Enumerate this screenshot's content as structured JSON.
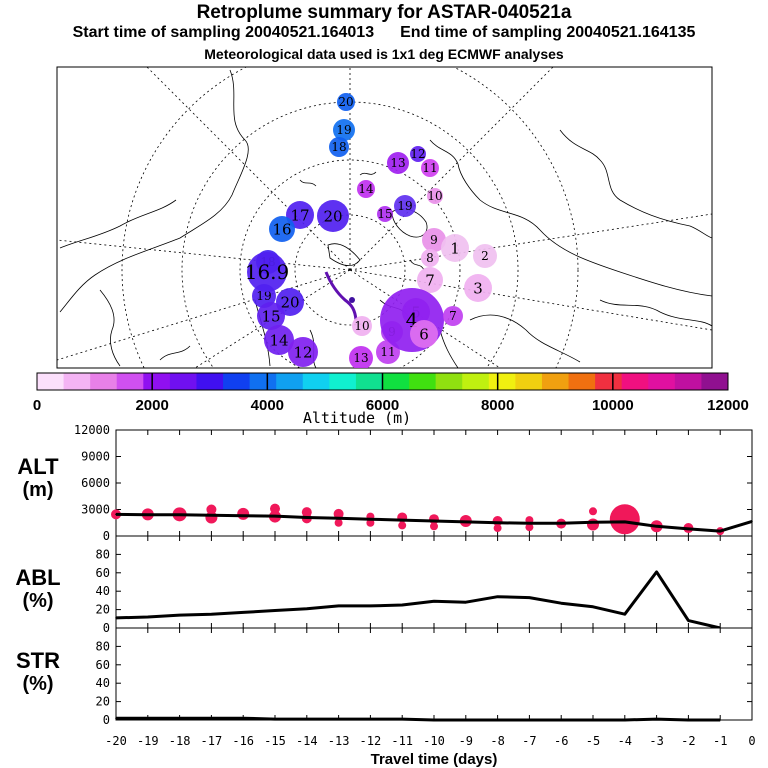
{
  "header": {
    "title": "Retroplume summary for ASTAR-040521a",
    "start_label": "Start time of sampling 20040521.164013",
    "end_label": "End time of sampling 20040521.164135",
    "met_label": "Meteorological data used is 1x1 deg ECMWF analyses"
  },
  "colorbar": {
    "title": "Altitude (m)",
    "tick_labels": [
      "0",
      "2000",
      "4000",
      "6000",
      "8000",
      "10000",
      "12000"
    ],
    "colors": [
      "#fce0fc",
      "#f4b4f4",
      "#e880e8",
      "#d050f0",
      "#9010f0",
      "#7010f0",
      "#4010f0",
      "#1040f0",
      "#1070f0",
      "#10a0f0",
      "#10d0f0",
      "#10f0d0",
      "#10e090",
      "#10e040",
      "#40e010",
      "#90e010",
      "#c0f010",
      "#f0f010",
      "#f0d010",
      "#f0a010",
      "#f07010",
      "#f03040",
      "#f01080",
      "#e010a0",
      "#c010a0",
      "#901090"
    ]
  },
  "map": {
    "plume_labels": [
      {
        "text": "20",
        "color": "#1060f0",
        "r": 9
      },
      {
        "text": "19",
        "color": "#1070f0",
        "r": 11
      },
      {
        "text": "18",
        "color": "#1060f0",
        "r": 10
      },
      {
        "text": "13",
        "color": "#a020f0",
        "r": 11
      },
      {
        "text": "12",
        "color": "#6020f0",
        "r": 8
      },
      {
        "text": "11",
        "color": "#d040f0",
        "r": 9
      },
      {
        "text": "10",
        "color": "#e890e8",
        "r": 8
      },
      {
        "text": "14",
        "color": "#c030f0",
        "r": 9
      },
      {
        "text": "15",
        "color": "#b030f0",
        "r": 8
      },
      {
        "text": "19",
        "color": "#6030f0",
        "r": 11
      },
      {
        "text": "17",
        "color": "#5020f0",
        "r": 14
      },
      {
        "text": "20",
        "color": "#5020f0",
        "r": 16
      },
      {
        "text": "16",
        "color": "#1060f0",
        "r": 13
      },
      {
        "text": "18",
        "color": "#4020f0",
        "r": 12
      },
      {
        "text": "19",
        "color": "#5020f0",
        "r": 12
      },
      {
        "text": "16.9",
        "color": "#5020f0",
        "r": 20
      },
      {
        "text": "20",
        "color": "#5020f0",
        "r": 14
      },
      {
        "text": "15",
        "color": "#6020f0",
        "r": 14
      },
      {
        "text": "14",
        "color": "#7020f0",
        "r": 15
      },
      {
        "text": "12",
        "color": "#8020f0",
        "r": 15
      },
      {
        "text": "10",
        "color": "#f0b0f0",
        "r": 10
      },
      {
        "text": "9",
        "color": "#b040f0",
        "r": 11
      },
      {
        "text": "11",
        "color": "#c040f0",
        "r": 12
      },
      {
        "text": "13",
        "color": "#c030f0",
        "r": 12
      },
      {
        "text": "9",
        "color": "#e890e8",
        "r": 12
      },
      {
        "text": "8",
        "color": "#f0b0f0",
        "r": 9
      },
      {
        "text": "1",
        "color": "#f0c0f0",
        "r": 14
      },
      {
        "text": "2",
        "color": "#f0c0f0",
        "r": 12
      },
      {
        "text": "7",
        "color": "#f0b0f0",
        "r": 13
      },
      {
        "text": "3",
        "color": "#f0b0f0",
        "r": 14
      },
      {
        "text": "5",
        "color": "#9030f0",
        "r": 14
      },
      {
        "text": "4",
        "color": "#9020f0",
        "r": 32
      },
      {
        "text": "6",
        "color": "#e070f0",
        "r": 14
      },
      {
        "text": "7",
        "color": "#c040f0",
        "r": 10
      }
    ]
  },
  "chart_data": [
    {
      "type": "line",
      "panel": "ALT",
      "ylabel": "ALT",
      "yunit": "(m)",
      "ylim": [
        0,
        12000
      ],
      "yticks": [
        0,
        3000,
        6000,
        9000,
        12000
      ],
      "xlabel": "Travel time (days)",
      "xlim": [
        -20,
        0
      ],
      "x": [
        -20,
        -19,
        -18,
        -17,
        -16,
        -15,
        -14,
        -13,
        -12,
        -11,
        -10,
        -9,
        -8,
        -7,
        -6,
        -5,
        -4,
        -3,
        -2,
        -1,
        0
      ],
      "y": [
        2450,
        2400,
        2400,
        2350,
        2300,
        2250,
        2100,
        2000,
        1900,
        1800,
        1700,
        1600,
        1500,
        1450,
        1450,
        1550,
        1600,
        1100,
        800,
        550,
        1650
      ],
      "spread_markers": [
        {
          "x": -20,
          "y": 2450,
          "s": 5
        },
        {
          "x": -19,
          "y": 2450,
          "s": 6
        },
        {
          "x": -18,
          "y": 2450,
          "s": 7
        },
        {
          "x": -17,
          "y": 3000,
          "s": 5
        },
        {
          "x": -17,
          "y": 2100,
          "s": 6
        },
        {
          "x": -16,
          "y": 2500,
          "s": 6
        },
        {
          "x": -15,
          "y": 3100,
          "s": 5
        },
        {
          "x": -15,
          "y": 2200,
          "s": 6
        },
        {
          "x": -14,
          "y": 2700,
          "s": 5
        },
        {
          "x": -14,
          "y": 2000,
          "s": 5
        },
        {
          "x": -13,
          "y": 2500,
          "s": 5
        },
        {
          "x": -13,
          "y": 1500,
          "s": 4
        },
        {
          "x": -12,
          "y": 2200,
          "s": 4
        },
        {
          "x": -12,
          "y": 1500,
          "s": 4
        },
        {
          "x": -11,
          "y": 2100,
          "s": 5
        },
        {
          "x": -11,
          "y": 1200,
          "s": 4
        },
        {
          "x": -10,
          "y": 1900,
          "s": 5
        },
        {
          "x": -10,
          "y": 1100,
          "s": 4
        },
        {
          "x": -9,
          "y": 1700,
          "s": 6
        },
        {
          "x": -8,
          "y": 1700,
          "s": 5
        },
        {
          "x": -8,
          "y": 900,
          "s": 4
        },
        {
          "x": -7,
          "y": 1800,
          "s": 4
        },
        {
          "x": -7,
          "y": 1000,
          "s": 4
        },
        {
          "x": -6,
          "y": 1400,
          "s": 5
        },
        {
          "x": -5,
          "y": 2800,
          "s": 4
        },
        {
          "x": -5,
          "y": 1300,
          "s": 6
        },
        {
          "x": -4,
          "y": 1900,
          "s": 15
        },
        {
          "x": -3,
          "y": 1100,
          "s": 6
        },
        {
          "x": -2,
          "y": 900,
          "s": 5
        },
        {
          "x": -1,
          "y": 550,
          "s": 4
        }
      ]
    },
    {
      "type": "line",
      "panel": "ABL",
      "ylabel": "ABL",
      "yunit": "(%)",
      "ylim": [
        0,
        100
      ],
      "yticks": [
        0,
        20,
        40,
        60,
        80
      ],
      "xlim": [
        -20,
        0
      ],
      "x": [
        -20,
        -19,
        -18,
        -17,
        -16,
        -15,
        -14,
        -13,
        -12,
        -11,
        -10,
        -9,
        -8,
        -7,
        -6,
        -5,
        -4,
        -3,
        -2,
        -1
      ],
      "y": [
        11,
        12,
        14,
        15,
        17,
        19,
        21,
        24,
        24,
        25,
        29,
        28,
        34,
        33,
        27,
        23,
        15,
        61,
        8,
        0
      ]
    },
    {
      "type": "line",
      "panel": "STR",
      "ylabel": "STR",
      "yunit": "(%)",
      "ylim": [
        0,
        100
      ],
      "yticks": [
        0,
        20,
        40,
        60,
        80
      ],
      "xlabel": "Travel time (days)",
      "xlim": [
        -20,
        0
      ],
      "xtick_labels": [
        "-20",
        "-19",
        "-18",
        "-17",
        "-16",
        "-15",
        "-14",
        "-13",
        "-12",
        "-11",
        "-10",
        "-9",
        "-8",
        "-7",
        "-6",
        "-5",
        "-4",
        "-3",
        "-2",
        "-1",
        "0"
      ],
      "x": [
        -20,
        -19,
        -18,
        -17,
        -16,
        -15,
        -14,
        -13,
        -12,
        -11,
        -10,
        -9,
        -8,
        -7,
        -6,
        -5,
        -4,
        -3,
        -2,
        -1
      ],
      "y": [
        2,
        2,
        2,
        2,
        2,
        1,
        1,
        1,
        1,
        1,
        0,
        0,
        0,
        0,
        0,
        0,
        0,
        1,
        0,
        0
      ]
    }
  ]
}
